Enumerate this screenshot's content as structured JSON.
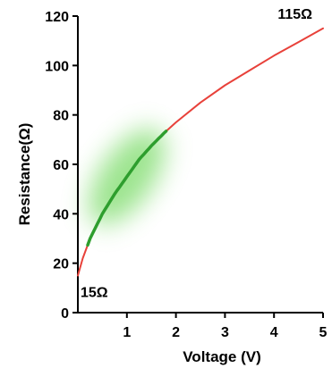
{
  "chart_data": {
    "type": "line",
    "xlabel": "Voltage (V)",
    "ylabel": "Resistance(Ω)",
    "xlim": [
      0,
      5
    ],
    "ylim": [
      0,
      120
    ],
    "xticks": [
      1,
      2,
      3,
      4,
      5
    ],
    "yticks": [
      0,
      20,
      40,
      60,
      80,
      100,
      120
    ],
    "grid": false,
    "series": [
      {
        "color": "#e8413a",
        "x": [
          0.0,
          0.1,
          0.25,
          0.5,
          0.75,
          1.0,
          1.25,
          1.5,
          1.75,
          2.0,
          2.5,
          3.0,
          3.5,
          4.0,
          4.5,
          5.0
        ],
        "y": [
          15,
          22,
          30,
          40,
          48,
          55,
          62,
          67.5,
          72.5,
          77,
          85,
          92,
          98,
          104,
          109.5,
          115
        ]
      }
    ],
    "highlight": {
      "color": "#2e9e2e",
      "glow_color": "#7ddc6a",
      "x_from": 0.2,
      "x_to": 1.8
    },
    "annotations": [
      {
        "text": "15Ω",
        "x": 0.0,
        "y": 15,
        "anchor": "below-right"
      },
      {
        "text": "115Ω",
        "x": 5.0,
        "y": 115,
        "anchor": "above-left"
      }
    ]
  }
}
